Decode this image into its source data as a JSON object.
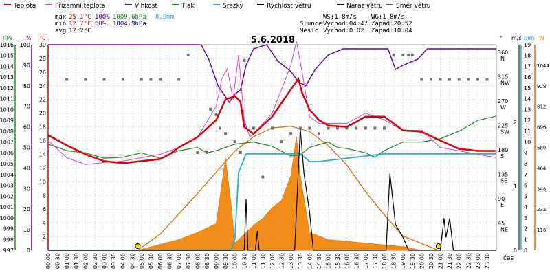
{
  "chart_data": {
    "type": "line",
    "title": "5.6.2018",
    "legend": [
      {
        "label": "Teplota",
        "color": "#e00000"
      },
      {
        "label": "Přízemní teplota",
        "color": "#e040e0"
      },
      {
        "label": "Vlhkost",
        "color": "#7000a0"
      },
      {
        "label": "Tlak",
        "color": "#2e8b2e"
      },
      {
        "label": "Srážky",
        "color": "#20b0e0"
      },
      {
        "label": "Rychlost větru",
        "color": "#000000"
      },
      {
        "label": "Náraz větru",
        "color": "#000080"
      },
      {
        "label": "Směr větru",
        "color": "#606060"
      }
    ],
    "stats": {
      "max_label": "max",
      "min_label": "min",
      "avg_label": "avg",
      "max_temp": "25.1°C",
      "max_hum": "100%",
      "max_press": "1009.6hPa",
      "rain_total": "8.9mm",
      "min_temp": "12.7°C",
      "min_hum": "68%",
      "min_press": "1004.9hPa",
      "avg_temp": "17.2°C"
    },
    "wind_info": {
      "ws": "WS:1.8m/s",
      "wg": "WG:1.8m/s"
    },
    "sun": {
      "label": "Slunce",
      "rise": "Východ:04:47",
      "set": "Západ:20:52"
    },
    "moon": {
      "label": "Měsíc",
      "rise": "Východ:0:02",
      "set": "Západ:10:04"
    },
    "axes": {
      "hpa": {
        "unit": "hPa",
        "ticks": [
          "997",
          "998",
          "999",
          "1000",
          "1001",
          "1002",
          "1003",
          "1004",
          "1005",
          "1006",
          "1007",
          "1008",
          "1009",
          "1010",
          "1011",
          "1012",
          "1013",
          "1014",
          "1015",
          "1016"
        ],
        "color": "#2e8b2e"
      },
      "pct": {
        "unit": "%",
        "ticks": [
          "0",
          "10",
          "20",
          "30",
          "40",
          "50",
          "60",
          "70",
          "80",
          "90",
          "100"
        ],
        "color": "#7000a0"
      },
      "temp": {
        "unit": "°C",
        "ticks": [
          "2",
          "4",
          "6",
          "8",
          "10",
          "12",
          "14",
          "16",
          "18",
          "20",
          "22",
          "24",
          "26",
          "28",
          "30"
        ],
        "color": "#e00000"
      },
      "dir": {
        "unit": "°",
        "ticks": [
          {
            "v": "45",
            "d": "NE"
          },
          {
            "v": "90",
            "d": "E"
          },
          {
            "v": "135",
            "d": "SE"
          },
          {
            "v": "180",
            "d": "S"
          },
          {
            "v": "225",
            "d": "SW"
          },
          {
            "v": "270",
            "d": "W"
          },
          {
            "v": "315",
            "d": "NW"
          },
          {
            "v": "360",
            "d": "N"
          }
        ]
      },
      "ms": {
        "unit": "m/s",
        "ticks": [
          "0",
          "1",
          "2"
        ]
      },
      "mm": {
        "unit": "mm",
        "ticks": [
          "0",
          "1",
          "2",
          "3",
          "4",
          "5",
          "6",
          "7",
          "8",
          "9",
          "10",
          "11",
          "12",
          "13",
          "14",
          "15",
          "16",
          "17",
          "18",
          "19"
        ],
        "color": "#20b0e0"
      },
      "wm2": {
        "unit": "W",
        "ticks": [
          "116",
          "232",
          "348",
          "464",
          "580",
          "696",
          "812",
          "928",
          "1044"
        ],
        "color": "#e07000"
      },
      "x_label": "čas",
      "x_ticks": [
        "00:00",
        "00:30",
        "01:00",
        "01:30",
        "02:00",
        "02:30",
        "03:00",
        "03:30",
        "04:00",
        "04:30",
        "05:00",
        "05:30",
        "06:00",
        "06:30",
        "07:00",
        "07:30",
        "08:00",
        "08:30",
        "09:00",
        "09:30",
        "10:00",
        "10:30",
        "11:00",
        "11:30",
        "12:00",
        "12:30",
        "13:00",
        "13:30",
        "14:00",
        "14:30",
        "15:00",
        "15:30",
        "16:00",
        "16:30",
        "17:00",
        "17:30",
        "18:00",
        "18:30",
        "19:00",
        "19:30",
        "20:00",
        "20:30",
        "21:00",
        "21:30",
        "22:00",
        "22:30",
        "23:00",
        "23:30"
      ]
    },
    "series": {
      "temperature": [
        [
          0,
          16.8
        ],
        [
          1,
          15.3
        ],
        [
          2,
          14.0
        ],
        [
          3,
          13.0
        ],
        [
          4,
          12.7
        ],
        [
          5,
          13.0
        ],
        [
          6,
          13.3
        ],
        [
          6.5,
          14.0
        ],
        [
          7,
          15.0
        ],
        [
          8,
          16.5
        ],
        [
          9,
          19.0
        ],
        [
          9.5,
          22.0
        ],
        [
          10,
          22.5
        ],
        [
          10.3,
          21.7
        ],
        [
          10.5,
          18.0
        ],
        [
          11,
          17.0
        ],
        [
          12,
          19.5
        ],
        [
          13,
          23.5
        ],
        [
          13.4,
          25.0
        ],
        [
          13.6,
          23.0
        ],
        [
          14,
          20.5
        ],
        [
          14.5,
          19.0
        ],
        [
          15,
          18.2
        ],
        [
          16,
          18.0
        ],
        [
          17,
          19.5
        ],
        [
          18,
          19.5
        ],
        [
          18.5,
          18.5
        ],
        [
          19,
          17.5
        ],
        [
          20,
          17.3
        ],
        [
          21,
          16.0
        ],
        [
          22,
          14.8
        ],
        [
          23,
          14.5
        ],
        [
          24,
          14.5
        ]
      ],
      "ground_temperature": [
        [
          0,
          16.0
        ],
        [
          1,
          13.5
        ],
        [
          2,
          12.5
        ],
        [
          3,
          12.8
        ],
        [
          4,
          13.0
        ],
        [
          5,
          13.5
        ],
        [
          6,
          14.0
        ],
        [
          7,
          15.0
        ],
        [
          8,
          16.5
        ],
        [
          9,
          21.0
        ],
        [
          9.3,
          25.0
        ],
        [
          9.6,
          26.5
        ],
        [
          9.9,
          22.0
        ],
        [
          10.2,
          28.5
        ],
        [
          10.5,
          19.0
        ],
        [
          10.8,
          16.5
        ],
        [
          11,
          17.0
        ],
        [
          12,
          20.0
        ],
        [
          13,
          27.0
        ],
        [
          13.3,
          30.5
        ],
        [
          13.6,
          26.0
        ],
        [
          14,
          19.5
        ],
        [
          14.5,
          18.5
        ],
        [
          15,
          18.5
        ],
        [
          16,
          18.5
        ],
        [
          17,
          20.0
        ],
        [
          18,
          19.0
        ],
        [
          19,
          17.5
        ],
        [
          20,
          17.5
        ],
        [
          21,
          15.0
        ],
        [
          22,
          14.5
        ],
        [
          23,
          14.0
        ],
        [
          24,
          13.5
        ]
      ],
      "humidity": [
        [
          0,
          100
        ],
        [
          8.2,
          100
        ],
        [
          8.6,
          93
        ],
        [
          9.1,
          80
        ],
        [
          9.7,
          72
        ],
        [
          10.0,
          76
        ],
        [
          10.3,
          78
        ],
        [
          10.6,
          90
        ],
        [
          11,
          98
        ],
        [
          11.7,
          100
        ],
        [
          12.3,
          92
        ],
        [
          13,
          87
        ],
        [
          13.4,
          82
        ],
        [
          13.8,
          80
        ],
        [
          14.3,
          88
        ],
        [
          15,
          95
        ],
        [
          15.8,
          98
        ],
        [
          18.2,
          98
        ],
        [
          18.6,
          88
        ],
        [
          19,
          90
        ],
        [
          19.8,
          93
        ],
        [
          20.3,
          98
        ],
        [
          20.8,
          98
        ],
        [
          24,
          98
        ]
      ],
      "pressure": [
        [
          0,
          1006.8
        ],
        [
          1,
          1006.2
        ],
        [
          2,
          1006.0
        ],
        [
          3,
          1005.5
        ],
        [
          4,
          1005.6
        ],
        [
          5,
          1006.0
        ],
        [
          6,
          1005.5
        ],
        [
          7,
          1006.2
        ],
        [
          8,
          1006.5
        ],
        [
          8.5,
          1006.0
        ],
        [
          9,
          1006.2
        ],
        [
          10,
          1006.8
        ],
        [
          11,
          1007.0
        ],
        [
          12,
          1006.6
        ],
        [
          13,
          1005.7
        ],
        [
          13.5,
          1005.8
        ],
        [
          14,
          1006.5
        ],
        [
          15,
          1007.0
        ],
        [
          15.5,
          1006.5
        ],
        [
          16,
          1006.4
        ],
        [
          17,
          1006.0
        ],
        [
          17.5,
          1005.6
        ],
        [
          18,
          1006.2
        ],
        [
          19,
          1007.0
        ],
        [
          20,
          1007.0
        ],
        [
          21,
          1007.3
        ],
        [
          22,
          1008.0
        ],
        [
          23,
          1009.0
        ],
        [
          24,
          1009.4
        ]
      ],
      "rain_cumulative": [
        [
          0,
          0
        ],
        [
          9.8,
          0
        ],
        [
          10.0,
          1
        ],
        [
          10.2,
          7.2
        ],
        [
          10.6,
          8.9
        ],
        [
          13.5,
          8.9
        ],
        [
          14.0,
          8.2
        ],
        [
          14.5,
          8.2
        ],
        [
          18.0,
          8.9
        ],
        [
          24,
          8.9
        ]
      ],
      "wind_speed": [
        [
          0,
          0
        ],
        [
          10.5,
          0
        ],
        [
          10.6,
          0.8
        ],
        [
          10.7,
          0
        ],
        [
          11.1,
          0
        ],
        [
          11.2,
          0.3
        ],
        [
          11.3,
          0
        ],
        [
          13.2,
          0
        ],
        [
          13.5,
          1.9
        ],
        [
          13.7,
          1.2
        ],
        [
          14.0,
          0.6
        ],
        [
          14.2,
          0
        ],
        [
          18.1,
          0
        ],
        [
          18.3,
          1.2
        ],
        [
          18.6,
          0.4
        ],
        [
          19.0,
          0.2
        ],
        [
          19.3,
          0
        ],
        [
          21.0,
          0
        ],
        [
          21.2,
          0.5
        ],
        [
          21.3,
          0.2
        ],
        [
          21.5,
          0.5
        ],
        [
          21.7,
          0
        ],
        [
          24,
          0
        ]
      ],
      "solar": [
        [
          4.8,
          0
        ],
        [
          7,
          60
        ],
        [
          8,
          100
        ],
        [
          9,
          150
        ],
        [
          9.5,
          520
        ],
        [
          9.8,
          260
        ],
        [
          10,
          40
        ],
        [
          10.5,
          90
        ],
        [
          11,
          140
        ],
        [
          11.5,
          180
        ],
        [
          12,
          240
        ],
        [
          12.5,
          280
        ],
        [
          13,
          420
        ],
        [
          13.3,
          640
        ],
        [
          13.5,
          420
        ],
        [
          14,
          100
        ],
        [
          15,
          60
        ],
        [
          16,
          50
        ],
        [
          17,
          40
        ],
        [
          18,
          30
        ],
        [
          19,
          20
        ],
        [
          20,
          0
        ]
      ],
      "solar_max": [
        [
          4.8,
          0
        ],
        [
          6,
          90
        ],
        [
          8,
          320
        ],
        [
          10,
          560
        ],
        [
          11,
          640
        ],
        [
          12,
          690
        ],
        [
          13,
          700
        ],
        [
          14,
          670
        ],
        [
          15,
          590
        ],
        [
          16,
          480
        ],
        [
          17,
          330
        ],
        [
          18,
          200
        ],
        [
          19,
          80
        ],
        [
          20.9,
          0
        ]
      ],
      "wind_direction": [
        [
          0,
          315
        ],
        [
          1,
          315
        ],
        [
          2,
          315
        ],
        [
          3,
          315
        ],
        [
          4,
          315
        ],
        [
          5,
          315
        ],
        [
          5.5,
          315
        ],
        [
          6,
          315
        ],
        [
          7,
          315
        ],
        [
          7.5,
          360
        ],
        [
          8,
          180
        ],
        [
          8.5,
          180
        ],
        [
          8.7,
          260
        ],
        [
          9,
          250
        ],
        [
          9.2,
          225
        ],
        [
          9.5,
          215
        ],
        [
          10,
          200
        ],
        [
          10.3,
          180
        ],
        [
          10.5,
          350
        ],
        [
          11,
          225
        ],
        [
          11.5,
          135
        ],
        [
          12,
          225
        ],
        [
          12.5,
          200
        ],
        [
          13,
          215
        ],
        [
          13.5,
          225
        ],
        [
          14,
          225
        ],
        [
          14.5,
          215
        ],
        [
          15,
          225
        ],
        [
          15.5,
          225
        ],
        [
          16,
          225
        ],
        [
          16.5,
          225
        ],
        [
          17,
          225
        ],
        [
          17.5,
          225
        ],
        [
          18,
          225
        ],
        [
          18.5,
          360
        ],
        [
          19,
          360
        ],
        [
          19.3,
          360
        ],
        [
          19.5,
          360
        ],
        [
          20,
          315
        ],
        [
          20.5,
          315
        ],
        [
          21,
          315
        ],
        [
          21.5,
          315
        ],
        [
          22,
          315
        ],
        [
          22.5,
          315
        ],
        [
          23,
          315
        ],
        [
          23.5,
          315
        ]
      ]
    },
    "markers": {
      "sunrise": 4.8,
      "sunset": 20.9
    }
  }
}
